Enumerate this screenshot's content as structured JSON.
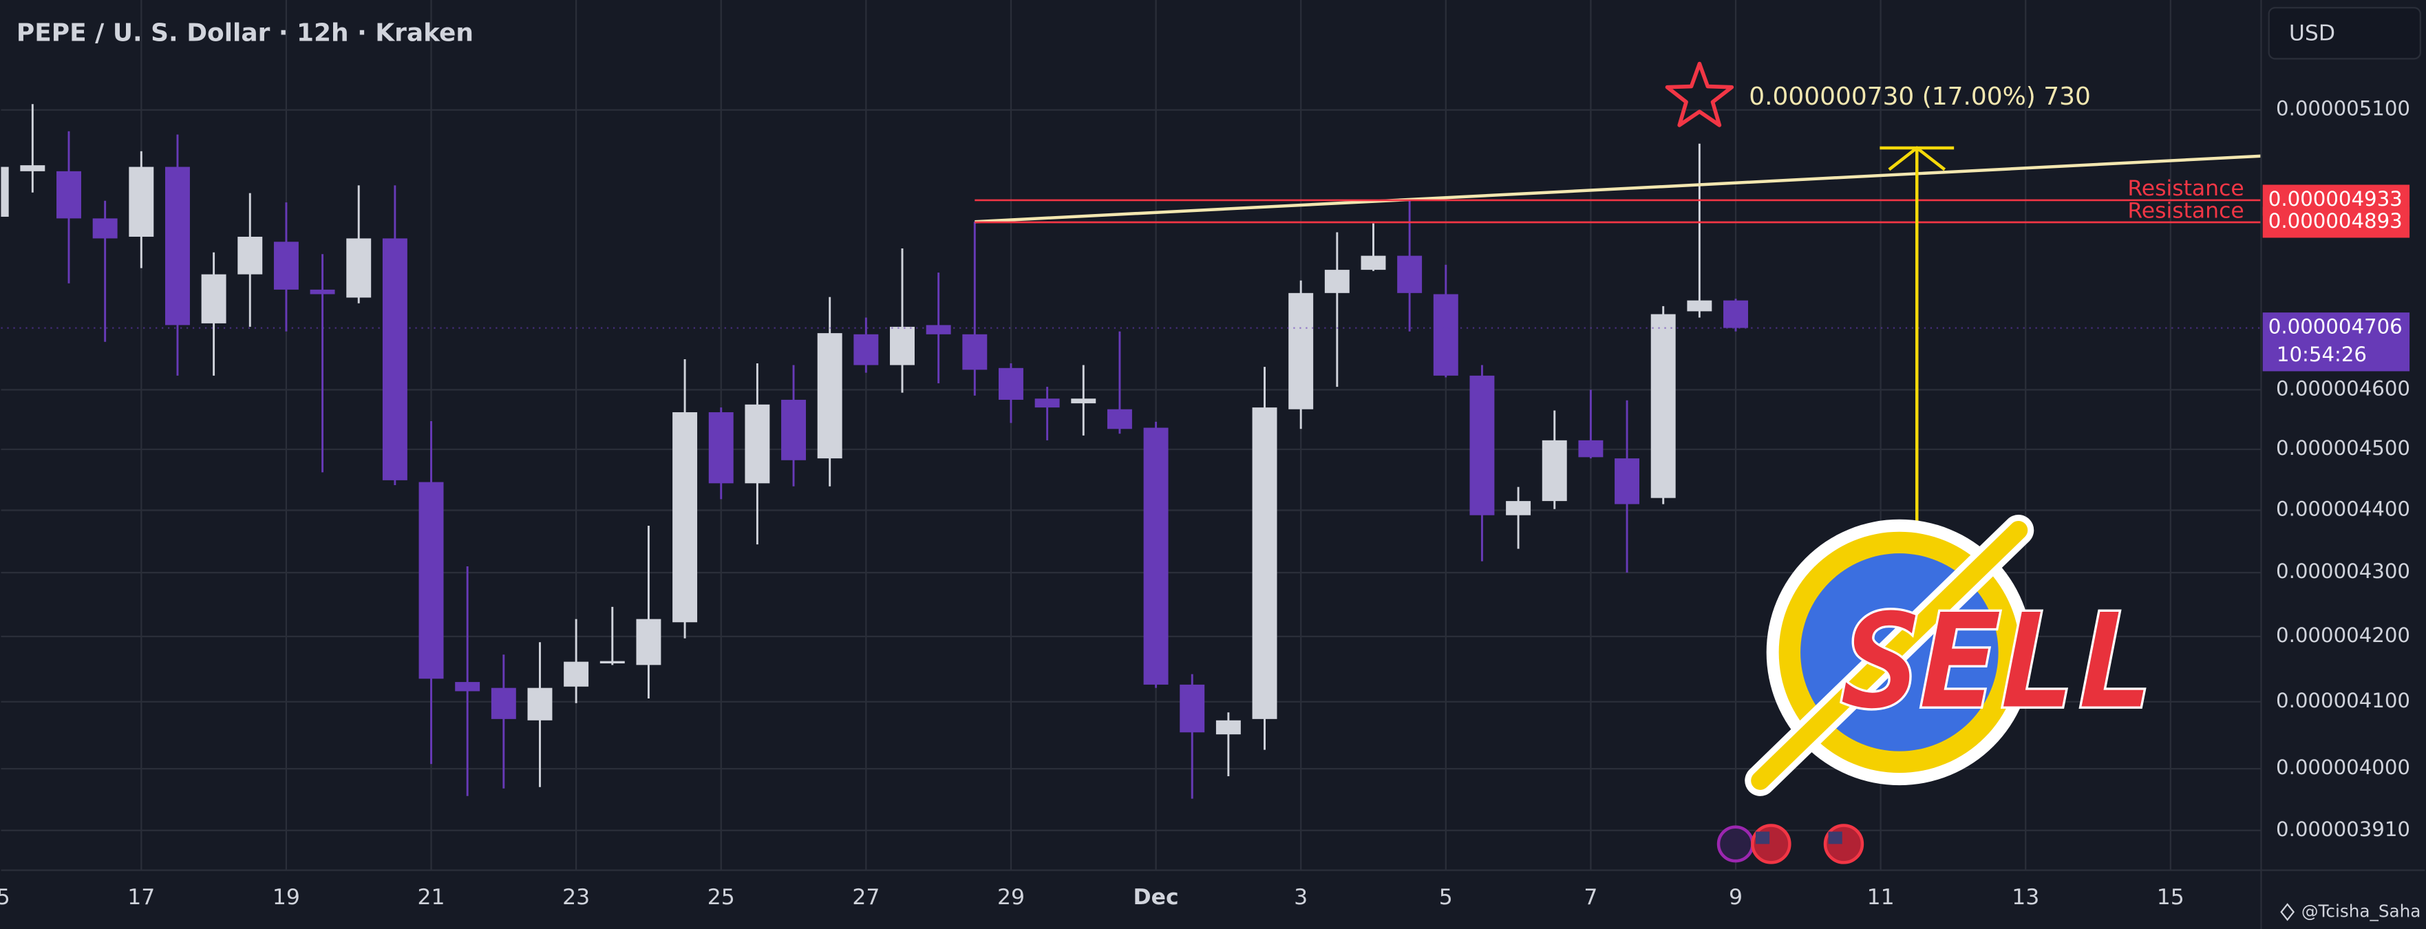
{
  "chart_data": {
    "type": "candlestick",
    "title": "PEPE / U. S. Dollar · 12h · Kraken",
    "currency": "USD",
    "watermark": "@Tcisha_Saha",
    "categories": [
      null,
      null,
      null,
      null,
      null,
      null,
      null,
      null,
      null,
      null,
      null,
      null,
      null,
      null,
      null,
      null,
      null,
      null,
      null,
      null,
      null,
      null,
      null,
      null,
      null,
      null,
      null,
      null,
      null,
      null,
      null,
      null,
      null,
      null,
      null,
      null,
      null,
      null,
      null,
      null,
      null,
      null,
      null,
      null,
      null,
      null,
      null,
      null,
      null
    ],
    "open": [
      4.903e-06,
      4.986e-06,
      4.986e-06,
      4.9e-06,
      4.867e-06,
      4.994e-06,
      4.714e-06,
      4.8e-06,
      4.858e-06,
      4.773e-06,
      4.759e-06,
      4.864e-06,
      4.446e-06,
      4.13e-06,
      4.121e-06,
      4.072e-06,
      4.123e-06,
      4.16e-06,
      4.156e-06,
      4.222e-06,
      4.562e-06,
      4.444e-06,
      4.583e-06,
      4.485e-06,
      4.695e-06,
      4.642e-06,
      4.711e-06,
      4.695e-06,
      4.637e-06,
      4.585e-06,
      4.577e-06,
      4.567e-06,
      4.536e-06,
      4.126e-06,
      4.051e-06,
      4.074e-06,
      4.567e-06,
      4.767e-06,
      4.808e-06,
      4.833e-06,
      4.765e-06,
      4.624e-06,
      4.392e-06,
      4.415e-06,
      4.515e-06,
      4.485e-06,
      4.42e-06,
      4.735e-06,
      4.754e-06
    ],
    "high": [
      5.017e-06,
      5.111e-06,
      5.06e-06,
      4.932e-06,
      5.023e-06,
      5.054e-06,
      4.839e-06,
      4.946e-06,
      4.929e-06,
      4.836e-06,
      4.96e-06,
      4.96e-06,
      4.547e-06,
      4.31e-06,
      4.172e-06,
      4.191e-06,
      4.227e-06,
      4.246e-06,
      4.375e-06,
      4.652e-06,
      4.57e-06,
      4.645e-06,
      4.642e-06,
      4.76e-06,
      4.724e-06,
      4.846e-06,
      4.803e-06,
      4.894e-06,
      4.645e-06,
      4.605e-06,
      4.642e-06,
      4.7e-06,
      4.546e-06,
      4.142e-06,
      4.084e-06,
      4.639e-06,
      4.789e-06,
      4.875e-06,
      4.891e-06,
      4.936e-06,
      4.817e-06,
      4.642e-06,
      4.438e-06,
      4.565e-06,
      4.6e-06,
      4.582e-06,
      4.744e-06,
      5.037e-06,
      4.757e-06
    ],
    "low": [
      4.9e-06,
      4.947e-06,
      4.784e-06,
      4.682e-06,
      4.811e-06,
      4.624e-06,
      4.624e-06,
      4.708e-06,
      4.7e-06,
      4.462e-06,
      4.749e-06,
      4.441e-06,
      4.007e-06,
      3.96e-06,
      3.971e-06,
      3.973e-06,
      4.098e-06,
      4.156e-06,
      4.105e-06,
      4.197e-06,
      4.418e-06,
      4.345e-06,
      4.439e-06,
      4.439e-06,
      4.629e-06,
      4.595e-06,
      4.611e-06,
      4.59e-06,
      4.544e-06,
      4.515e-06,
      4.523e-06,
      4.526e-06,
      4.121e-06,
      3.956e-06,
      3.989e-06,
      4.028e-06,
      4.534e-06,
      4.605e-06,
      4.806e-06,
      4.7e-06,
      4.621e-06,
      4.318e-06,
      4.338e-06,
      4.402e-06,
      4.485e-06,
      4.3e-06,
      4.41e-06,
      4.724e-06,
      4.7e-06
    ],
    "close": [
      4.994e-06,
      4.997e-06,
      4.9e-06,
      4.864e-06,
      4.994e-06,
      4.711e-06,
      4.8e-06,
      4.867e-06,
      4.773e-06,
      4.765e-06,
      4.864e-06,
      4.449e-06,
      4.135e-06,
      4.116e-06,
      4.074e-06,
      4.121e-06,
      4.161e-06,
      4.162e-06,
      4.227e-06,
      4.562e-06,
      4.444e-06,
      4.575e-06,
      4.482e-06,
      4.697e-06,
      4.642e-06,
      4.708e-06,
      4.695e-06,
      4.634e-06,
      4.583e-06,
      4.57e-06,
      4.585e-06,
      4.534e-06,
      4.126e-06,
      4.054e-06,
      4.072e-06,
      4.57e-06,
      4.767e-06,
      4.808e-06,
      4.833e-06,
      4.767e-06,
      4.624e-06,
      4.392e-06,
      4.415e-06,
      4.515e-06,
      4.487e-06,
      4.41e-06,
      4.73e-06,
      4.754e-06,
      4.706e-06
    ],
    "up_color": "#d1d4dc",
    "down_color": "#673ab7",
    "log_scale": true,
    "grid": true,
    "xlim": [
      0.128,
      62.5
    ],
    "xticks": [
      {
        "value": 0,
        "label": "15"
      },
      {
        "value": 4,
        "label": "17"
      },
      {
        "value": 8,
        "label": "19"
      },
      {
        "value": 12,
        "label": "21"
      },
      {
        "value": 16,
        "label": "23"
      },
      {
        "value": 20,
        "label": "25"
      },
      {
        "value": 24,
        "label": "27"
      },
      {
        "value": 28,
        "label": "29"
      },
      {
        "value": 32,
        "label": "Dec"
      },
      {
        "value": 36,
        "label": "3"
      },
      {
        "value": 40,
        "label": "5"
      },
      {
        "value": 44,
        "label": "7"
      },
      {
        "value": 48,
        "label": "9"
      },
      {
        "value": 52,
        "label": "11"
      },
      {
        "value": 56,
        "label": "13"
      },
      {
        "value": 60,
        "label": "15"
      }
    ],
    "ylim": [
      3.853e-06,
      5.311e-06
    ],
    "yticks": [
      {
        "value": 5.1e-06,
        "label": "0.000005100"
      },
      {
        "value": 4.6e-06,
        "label": "0.000004600"
      },
      {
        "value": 4.5e-06,
        "label": "0.000004500"
      },
      {
        "value": 4.4e-06,
        "label": "0.000004400"
      },
      {
        "value": 4.3e-06,
        "label": "0.000004300"
      },
      {
        "value": 4.2e-06,
        "label": "0.000004200"
      },
      {
        "value": 4.1e-06,
        "label": "0.000004100"
      },
      {
        "value": 4e-06,
        "label": "0.000004000"
      },
      {
        "value": 3.91e-06,
        "label": "0.000003910"
      }
    ],
    "horizontal_lines": [
      {
        "label": "Resistance",
        "value": 4.933e-06,
        "value_label": "0.000004933",
        "color": "#f23645"
      },
      {
        "label": "Resistance",
        "value": 4.893e-06,
        "value_label": "0.000004893",
        "color": "#f23645"
      }
    ],
    "last_price": {
      "value": 4.706e-06,
      "label": "0.000004706",
      "countdown": "10:54:26",
      "color": "#673ab7"
    },
    "trend_line": {
      "x": [
        27,
        62.5
      ],
      "y": [
        4.894e-06,
        5.014e-06
      ],
      "color": "#f3e7b0"
    },
    "star_note": {
      "x": 47,
      "value": 5.123e-06,
      "text": "0.000000730 (17.00%) 730",
      "color": "#f23645"
    },
    "arrow": {
      "x": 53,
      "from": 4.35e-06,
      "to": 5.029e-06,
      "color": "#f5d90a"
    },
    "sticker": "SELL"
  }
}
